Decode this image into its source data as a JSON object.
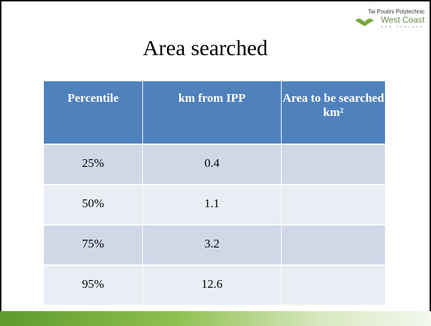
{
  "header": {
    "title": "Area searched",
    "logo": {
      "line1": "Tai Poutini Polytechnic",
      "line2": "West Coast",
      "line3": "NEW ZEALAND"
    }
  },
  "table": {
    "columns": [
      "Percentile",
      "km from IPP",
      "Area to be searched km²"
    ],
    "rows": [
      [
        "25%",
        "0.4",
        ""
      ],
      [
        "50%",
        "1.1",
        ""
      ],
      [
        "75%",
        "3.2",
        ""
      ],
      [
        "95%",
        "12.6",
        ""
      ]
    ]
  }
}
